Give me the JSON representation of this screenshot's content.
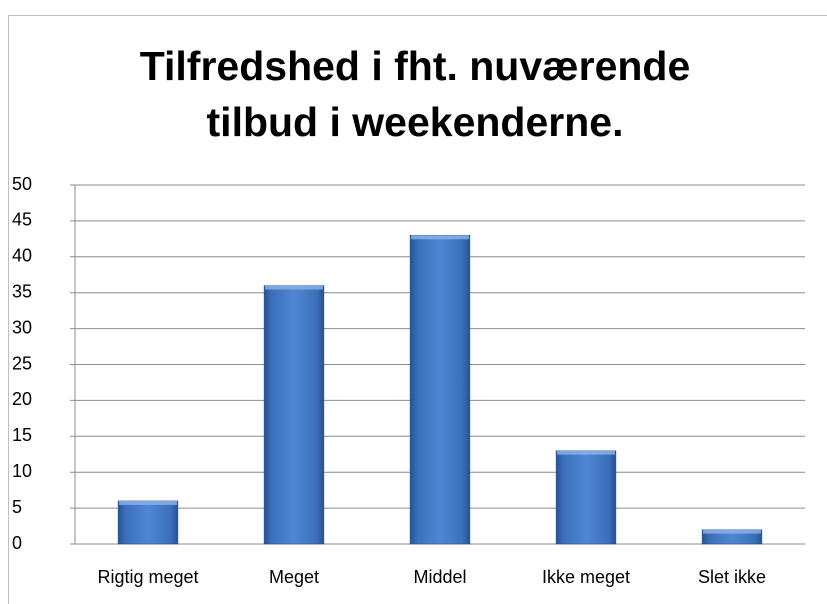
{
  "chart_data": {
    "type": "bar",
    "title": "Tilfredshed i fht. nuværende tilbud i weekenderne.",
    "categories": [
      "Rigtig meget",
      "Meget",
      "Middel",
      "Ikke meget",
      "Slet ikke"
    ],
    "values": [
      6,
      36,
      43,
      13,
      2
    ],
    "color": "#3e72bf",
    "ylim": [
      0,
      50
    ],
    "yticks": [
      0,
      5,
      10,
      15,
      20,
      25,
      30,
      35,
      40,
      45,
      50
    ],
    "grid": true
  }
}
